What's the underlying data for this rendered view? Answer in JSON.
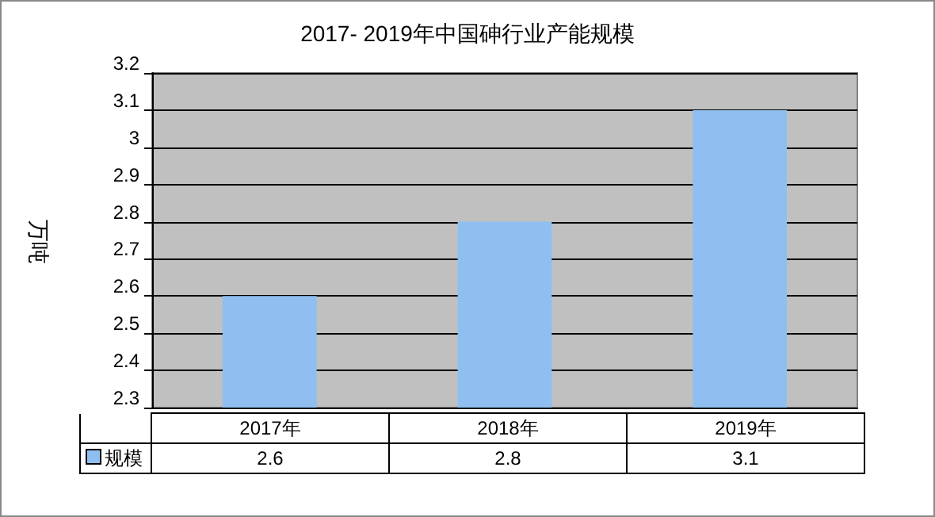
{
  "chart_data": {
    "type": "bar",
    "title": "2017- 2019年中国砷行业产能规模",
    "ylabel": "万吨",
    "categories": [
      "2017年",
      "2018年",
      "2019年"
    ],
    "series": [
      {
        "name": "规模",
        "color": "#8fbff0",
        "values": [
          2.6,
          2.8,
          3.1
        ]
      }
    ],
    "ylim": [
      2.3,
      3.2
    ],
    "yticks": [
      2.3,
      2.4,
      2.5,
      2.6,
      2.7,
      2.8,
      2.9,
      3,
      3.1,
      3.2
    ],
    "grid": "y",
    "data_labels": true,
    "legend": "bottom left"
  }
}
